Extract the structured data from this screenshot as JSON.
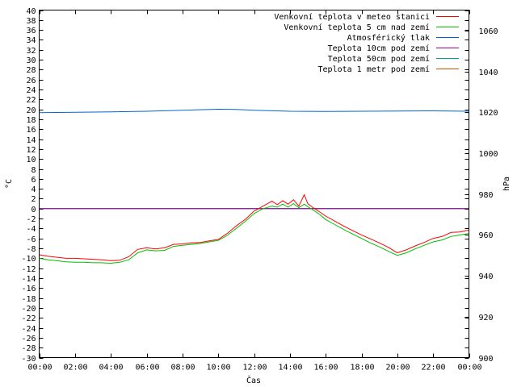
{
  "chart_data": {
    "type": "line",
    "xlabel": "Čas",
    "ylabel": "°C",
    "y2label": "hPa",
    "x_ticks": [
      "00:00",
      "02:00",
      "04:00",
      "06:00",
      "08:00",
      "10:00",
      "12:00",
      "14:00",
      "16:00",
      "18:00",
      "20:00",
      "22:00",
      "00:00"
    ],
    "xlim_hours": [
      0,
      24
    ],
    "ylim": [
      -30,
      40
    ],
    "y_ticks": [
      40,
      38,
      36,
      34,
      32,
      30,
      28,
      26,
      24,
      22,
      20,
      18,
      16,
      14,
      12,
      10,
      8,
      6,
      4,
      2,
      0,
      -2,
      -4,
      -6,
      -8,
      -10,
      -12,
      -14,
      -16,
      -18,
      -20,
      -22,
      -24,
      -26,
      -28,
      -30
    ],
    "y2lim": [
      900,
      1070
    ],
    "y2_ticks": [
      1060,
      1040,
      1020,
      1000,
      980,
      960,
      940,
      920,
      900
    ],
    "grid": false,
    "legend_position": "top-right",
    "series": [
      {
        "name": "Venkovní teplota v meteo stanici",
        "color": "#ff0000",
        "axis": "left",
        "x": [
          0,
          0.5,
          1,
          1.5,
          2,
          2.5,
          3,
          3.5,
          4,
          4.5,
          5,
          5.5,
          6,
          6.5,
          7,
          7.5,
          8,
          8.5,
          9,
          9.5,
          10,
          10.5,
          11,
          11.5,
          12,
          12.5,
          13,
          13.3,
          13.6,
          13.9,
          14.2,
          14.5,
          14.8,
          15,
          15.3,
          15.6,
          16,
          16.5,
          17,
          17.5,
          18,
          18.5,
          19,
          19.5,
          20,
          20.5,
          21,
          21.5,
          22,
          22.5,
          23,
          23.5,
          24
        ],
        "y": [
          -9.3,
          -9.6,
          -9.8,
          -10.0,
          -10.0,
          -10.1,
          -10.2,
          -10.3,
          -10.5,
          -10.4,
          -9.7,
          -8.2,
          -7.9,
          -8.1,
          -7.9,
          -7.2,
          -7.1,
          -6.9,
          -6.8,
          -6.5,
          -6.2,
          -5.0,
          -3.5,
          -2.2,
          -0.5,
          0.5,
          1.5,
          0.8,
          1.6,
          0.9,
          1.8,
          0.5,
          2.8,
          1.0,
          0.2,
          -0.5,
          -1.5,
          -2.5,
          -3.5,
          -4.4,
          -5.3,
          -6.1,
          -6.9,
          -7.8,
          -8.9,
          -8.3,
          -7.5,
          -6.8,
          -6.0,
          -5.6,
          -4.8,
          -4.7,
          -4.3
        ]
      },
      {
        "name": "Venkovní teplota 5 cm nad zemí",
        "color": "#00c000",
        "axis": "left",
        "x": [
          0,
          0.5,
          1,
          1.5,
          2,
          2.5,
          3,
          3.5,
          4,
          4.5,
          5,
          5.5,
          6,
          6.5,
          7,
          7.5,
          8,
          8.5,
          9,
          9.5,
          10,
          10.5,
          11,
          11.5,
          12,
          12.5,
          13,
          13.3,
          13.6,
          13.9,
          14.2,
          14.5,
          14.8,
          15,
          15.3,
          15.6,
          16,
          16.5,
          17,
          17.5,
          18,
          18.5,
          19,
          19.5,
          20,
          20.5,
          21,
          21.5,
          22,
          22.5,
          23,
          23.5,
          24
        ],
        "y": [
          -10.0,
          -10.3,
          -10.5,
          -10.7,
          -10.8,
          -10.8,
          -10.9,
          -10.9,
          -11.0,
          -10.8,
          -10.3,
          -8.9,
          -8.3,
          -8.5,
          -8.4,
          -7.6,
          -7.4,
          -7.2,
          -7.0,
          -6.7,
          -6.4,
          -5.4,
          -4.0,
          -2.6,
          -1.0,
          0.0,
          0.5,
          0.3,
          0.9,
          0.3,
          1.0,
          0.2,
          0.9,
          0.4,
          -0.3,
          -1.0,
          -2.2,
          -3.2,
          -4.2,
          -5.1,
          -6.0,
          -6.9,
          -7.7,
          -8.6,
          -9.4,
          -8.9,
          -8.1,
          -7.4,
          -6.7,
          -6.3,
          -5.6,
          -5.3,
          -5.0
        ]
      },
      {
        "name": "Atmosférický tlak",
        "color": "#0066cc",
        "axis": "right",
        "x": [
          0,
          2,
          4,
          6,
          8,
          10,
          11,
          12,
          14,
          16,
          18,
          20,
          22,
          24
        ],
        "y": [
          1019.8,
          1020.0,
          1020.2,
          1020.5,
          1021.0,
          1021.5,
          1021.4,
          1021.0,
          1020.5,
          1020.4,
          1020.5,
          1020.6,
          1020.7,
          1020.5
        ]
      },
      {
        "name": "Teplota 10cm pod zemí",
        "color": "#a000a0",
        "axis": "left",
        "x": [
          0,
          24
        ],
        "y": [
          0,
          0
        ]
      },
      {
        "name": "Teplota 50cm pod zemí",
        "color": "#00a0a0",
        "axis": "left",
        "x": [
          0,
          24
        ],
        "y": [
          0,
          0
        ]
      },
      {
        "name": "Teplota 1 metr pod zemí",
        "color": "#d05000",
        "axis": "left",
        "x": [
          0,
          24
        ],
        "y": [
          0,
          0
        ]
      }
    ]
  }
}
